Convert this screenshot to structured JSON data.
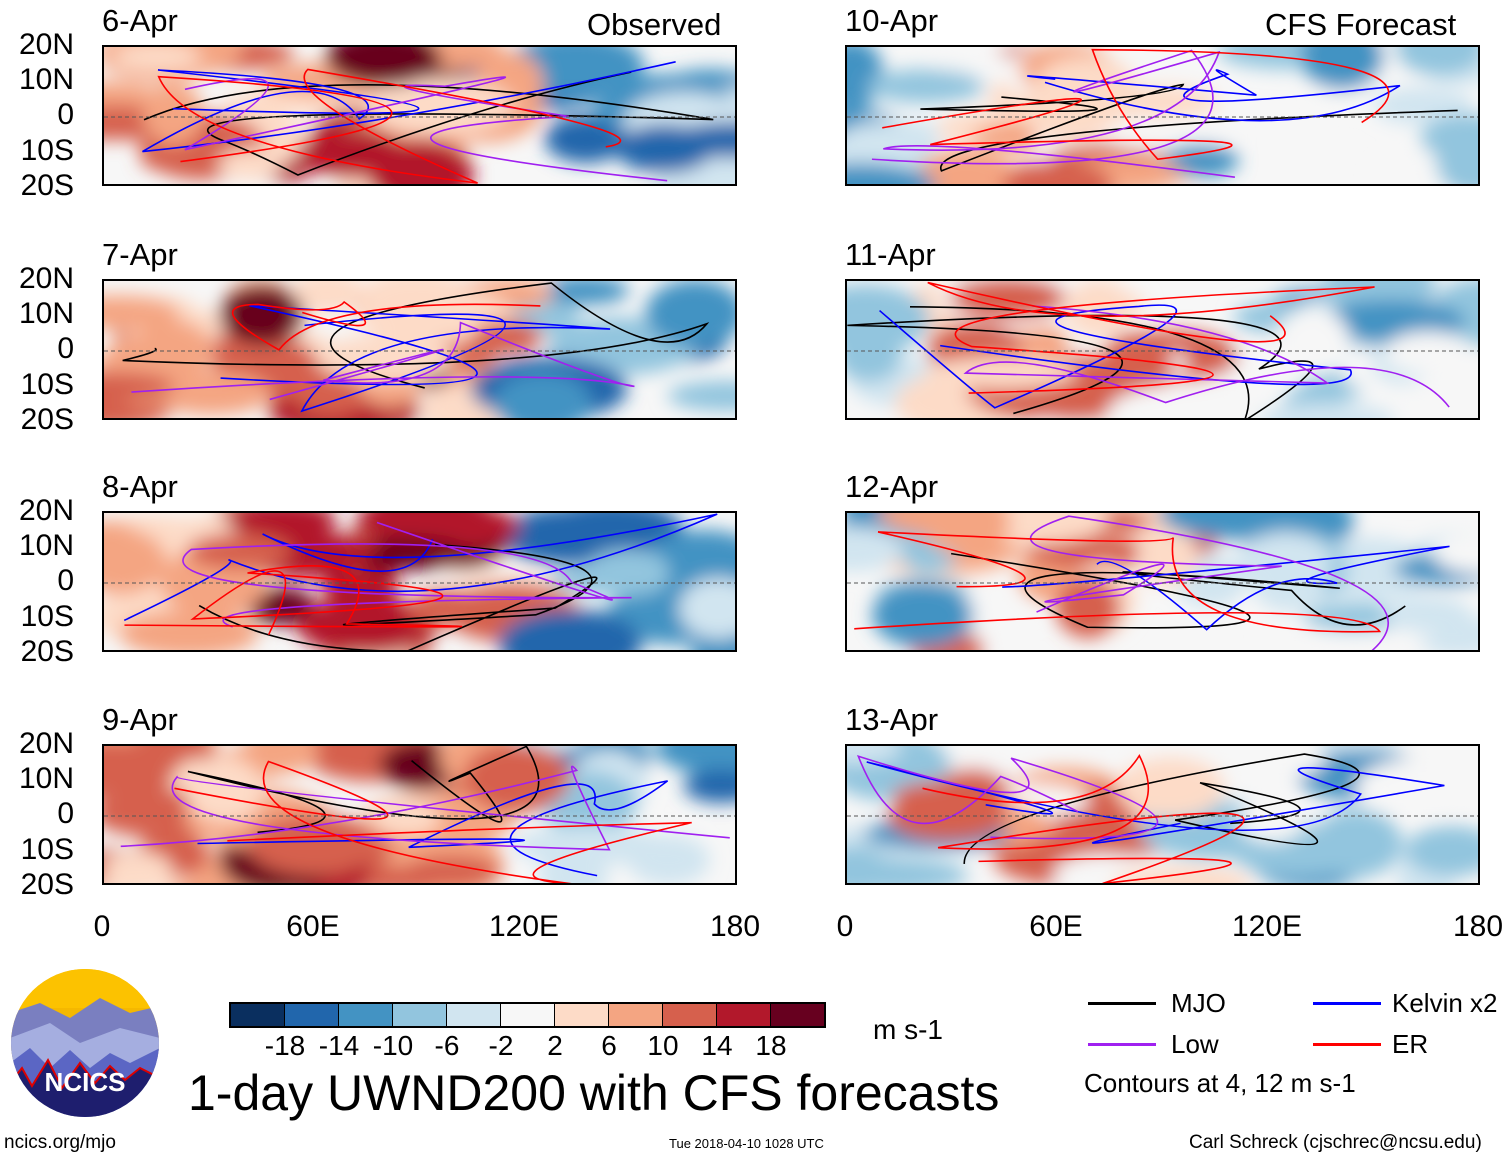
{
  "header": {
    "left_label": "Observed",
    "right_label": "CFS Forecast"
  },
  "panels": {
    "left": [
      {
        "date": "6-Apr"
      },
      {
        "date": "7-Apr"
      },
      {
        "date": "8-Apr"
      },
      {
        "date": "9-Apr"
      }
    ],
    "right": [
      {
        "date": "10-Apr"
      },
      {
        "date": "11-Apr"
      },
      {
        "date": "12-Apr"
      },
      {
        "date": "13-Apr"
      }
    ]
  },
  "axes": {
    "lat_ticks": [
      "20N",
      "10N",
      "0",
      "10S",
      "20S"
    ],
    "lon_ticks": [
      "0",
      "60E",
      "120E",
      "180"
    ]
  },
  "colorbar": {
    "labels": [
      "-18",
      "-14",
      "-10",
      "-6",
      "-2",
      "2",
      "6",
      "10",
      "14",
      "18"
    ],
    "colors": [
      "#0a2f5f",
      "#2166ac",
      "#4393c3",
      "#92c5de",
      "#d1e5f0",
      "#f7f7f7",
      "#fddbc7",
      "#f4a582",
      "#d6604d",
      "#b2182b",
      "#67001f"
    ],
    "units": "m s-1"
  },
  "legend": {
    "items": [
      {
        "label": "MJO",
        "color": "#000000"
      },
      {
        "label": "Kelvin x2",
        "color": "#0000ff"
      },
      {
        "label": "Low",
        "color": "#a020f0"
      },
      {
        "label": "ER",
        "color": "#ff0000"
      }
    ],
    "note": "Contours at 4, 12 m s-1"
  },
  "title": "1-day UWND200 with CFS forecasts",
  "logo": {
    "text": "NCICS"
  },
  "footer": {
    "url": "ncics.org/mjo",
    "timestamp": "Tue 2018-04-10 1028 UTC",
    "credit": "Carl Schreck (cjschrec@ncsu.edu)"
  }
}
